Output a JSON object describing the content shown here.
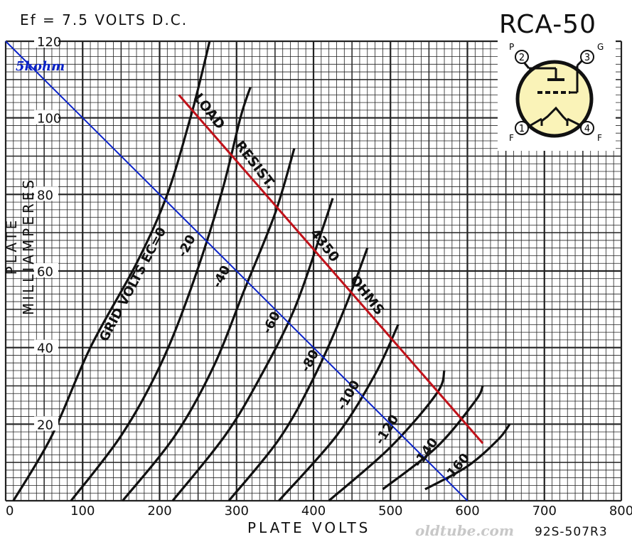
{
  "header": {
    "condition_label": "Ef = 7.5 VOLTS D.C.",
    "tube_title": "RCA-50"
  },
  "footer": {
    "watermark": "oldtube.com",
    "catalog_number": "92S-507R3"
  },
  "base_diagram": {
    "pins": [
      {
        "number": "1",
        "function": "F"
      },
      {
        "number": "2",
        "function": "P"
      },
      {
        "number": "3",
        "function": "G"
      },
      {
        "number": "4",
        "function": "F"
      }
    ],
    "colors": {
      "pin_fill": "#faf3b8"
    }
  },
  "chart_data": {
    "type": "line",
    "xlabel": "PLATE VOLTS",
    "ylabel": "PLATE MILLIAMPERES",
    "xlim": [
      0,
      800
    ],
    "ylim": [
      0,
      120
    ],
    "x_ticks": [
      0,
      100,
      200,
      300,
      400,
      500,
      600,
      700,
      800
    ],
    "y_ticks": [
      20,
      40,
      60,
      80,
      100,
      120
    ],
    "grid": true,
    "series": [
      {
        "name": "0",
        "points": [
          [
            10,
            0
          ],
          [
            60,
            17
          ],
          [
            110,
            40
          ],
          [
            170,
            62
          ],
          [
            210,
            80
          ],
          [
            240,
            100
          ],
          [
            253,
            110
          ],
          [
            265,
            120
          ]
        ]
      },
      {
        "name": "-20",
        "points": [
          [
            85,
            0
          ],
          [
            150,
            17
          ],
          [
            200,
            35
          ],
          [
            240,
            55
          ],
          [
            280,
            80
          ],
          [
            305,
            100
          ],
          [
            318,
            108
          ]
        ]
      },
      {
        "name": "-40",
        "points": [
          [
            152,
            0
          ],
          [
            220,
            17
          ],
          [
            270,
            35
          ],
          [
            310,
            55
          ],
          [
            350,
            75
          ],
          [
            375,
            92
          ]
        ]
      },
      {
        "name": "-60",
        "points": [
          [
            217,
            0
          ],
          [
            285,
            17
          ],
          [
            330,
            32
          ],
          [
            375,
            50
          ],
          [
            410,
            70
          ],
          [
            425,
            79
          ]
        ]
      },
      {
        "name": "-80",
        "points": [
          [
            290,
            0
          ],
          [
            355,
            16
          ],
          [
            400,
            32
          ],
          [
            440,
            50
          ],
          [
            470,
            66
          ]
        ]
      },
      {
        "name": "-100",
        "points": [
          [
            355,
            0
          ],
          [
            430,
            17
          ],
          [
            480,
            33
          ],
          [
            510,
            46
          ]
        ]
      },
      {
        "name": "-120",
        "points": [
          [
            420,
            0
          ],
          [
            500,
            14
          ],
          [
            560,
            28
          ],
          [
            570,
            34
          ]
        ]
      },
      {
        "name": "-140",
        "points": [
          [
            490,
            3
          ],
          [
            560,
            14
          ],
          [
            610,
            26
          ],
          [
            620,
            30
          ]
        ]
      },
      {
        "name": "-160",
        "points": [
          [
            545,
            3
          ],
          [
            600,
            9
          ],
          [
            640,
            16
          ],
          [
            655,
            20
          ]
        ]
      }
    ],
    "curve_labels": [
      {
        "text": "GRID VOLTS EC=0",
        "series": "0"
      },
      {
        "text": "-20",
        "series": "-20"
      },
      {
        "text": "-40",
        "series": "-40"
      },
      {
        "text": "-60",
        "series": "-60"
      },
      {
        "text": "-80",
        "series": "-80"
      },
      {
        "text": "-100",
        "series": "-100"
      },
      {
        "text": "-120",
        "series": "-120"
      },
      {
        "text": "-140",
        "series": "-140"
      },
      {
        "text": "-160",
        "series": "-160"
      }
    ],
    "load_lines": [
      {
        "name": "LOAD RESIST. 4350 OHMS",
        "color": "#c0121a",
        "points": [
          [
            225,
            106
          ],
          [
            620,
            15
          ]
        ]
      },
      {
        "name": "5kohm",
        "color": "#0a22c8",
        "points": [
          [
            0,
            120
          ],
          [
            600,
            0
          ]
        ]
      }
    ],
    "annotations": {
      "load_label_1": "LOAD",
      "load_label_2": "RESIST.",
      "load_label_3": "4350",
      "load_label_4": "OHMS",
      "blue_label": "5kohm"
    }
  }
}
